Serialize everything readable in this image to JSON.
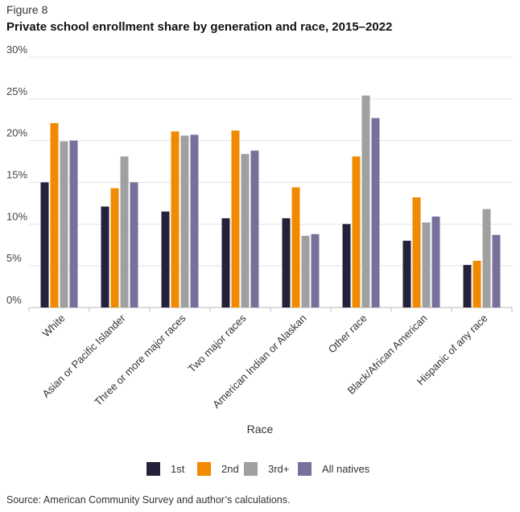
{
  "figure_label": "Figure 8",
  "title": "Private school enrollment share by generation and race, 2015–2022",
  "source": "Source: American Community Survey and author’s calculations.",
  "chart_data": {
    "type": "bar",
    "title": "Private school enrollment share by generation and race, 2015–2022",
    "xlabel": "Race",
    "ylabel": "",
    "ylim": [
      0,
      30
    ],
    "yticks": [
      0,
      5,
      10,
      15,
      20,
      25,
      30
    ],
    "ytick_labels": [
      "0%",
      "5%",
      "10%",
      "15%",
      "20%",
      "25%",
      "30%"
    ],
    "grid": true,
    "legend_position": "bottom",
    "categories": [
      "White",
      "Asian or Pacific Islander",
      "Three or more major races",
      "Two major races",
      "American Indian or Alaskan",
      "Other race",
      "Black/African American",
      "Hispanic of any race"
    ],
    "series": [
      {
        "name": "1st",
        "color": "#24213a",
        "values": [
          15.0,
          12.1,
          11.5,
          10.7,
          10.7,
          10.0,
          8.0,
          5.1
        ]
      },
      {
        "name": "2nd",
        "color": "#f08a00",
        "values": [
          22.1,
          14.3,
          21.1,
          21.2,
          14.4,
          18.1,
          13.2,
          5.6
        ]
      },
      {
        "name": "3rd+",
        "color": "#a0a0a0",
        "values": [
          19.9,
          18.1,
          20.6,
          18.4,
          8.6,
          25.4,
          10.2,
          11.8
        ]
      },
      {
        "name": "All natives",
        "color": "#77709a",
        "values": [
          20.0,
          15.0,
          20.7,
          18.8,
          8.8,
          22.7,
          10.9,
          8.7
        ]
      }
    ]
  }
}
